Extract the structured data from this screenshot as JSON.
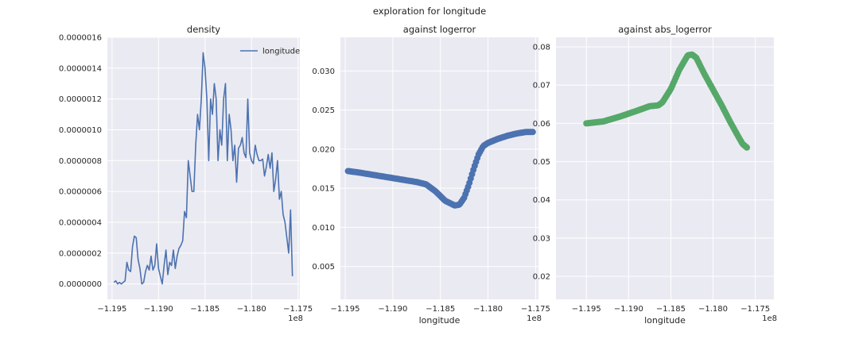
{
  "figure": {
    "suptitle": "exploration for longitude",
    "background": "#ffffff",
    "axes_bg": "#eaeaf2",
    "grid_color": "#ffffff"
  },
  "chart_data": [
    {
      "type": "line",
      "title": "density",
      "xlabel": "",
      "ylabel": "",
      "x_offset_label": "1e8",
      "xlim": [
        -1.1955,
        -1.1748
      ],
      "ylim": [
        -1e-07,
        1.6e-06
      ],
      "xticks": [
        -1.195,
        -1.19,
        -1.185,
        -1.18,
        -1.175
      ],
      "xtick_labels": [
        "−1.195",
        "−1.190",
        "−1.185",
        "−1.180",
        "−1.175"
      ],
      "yticks": [
        0,
        2e-07,
        4e-07,
        6e-07,
        8e-07,
        1e-06,
        1.2e-06,
        1.4e-06,
        1.6e-06
      ],
      "ytick_labels": [
        "0.0000000",
        "0.0000002",
        "0.0000004",
        "0.0000006",
        "0.0000008",
        "0.0000010",
        "0.0000012",
        "0.0000014",
        "0.0000016"
      ],
      "legend": {
        "position": "top-right",
        "entries": [
          "longitude"
        ]
      },
      "color": "#4c72b0",
      "series": [
        {
          "name": "longitude",
          "x": [
            -1.1948,
            -1.1946,
            -1.1944,
            -1.1942,
            -1.194,
            -1.1938,
            -1.1936,
            -1.1934,
            -1.1932,
            -1.193,
            -1.1928,
            -1.1926,
            -1.1924,
            -1.1922,
            -1.192,
            -1.1918,
            -1.1916,
            -1.1914,
            -1.1912,
            -1.191,
            -1.1908,
            -1.1906,
            -1.1904,
            -1.1902,
            -1.19,
            -1.1898,
            -1.1896,
            -1.1894,
            -1.1892,
            -1.189,
            -1.1888,
            -1.1886,
            -1.1884,
            -1.1882,
            -1.188,
            -1.1878,
            -1.1876,
            -1.1874,
            -1.1872,
            -1.187,
            -1.1868,
            -1.1866,
            -1.1864,
            -1.1862,
            -1.186,
            -1.1858,
            -1.1856,
            -1.1854,
            -1.1852,
            -1.185,
            -1.1848,
            -1.1846,
            -1.1844,
            -1.1842,
            -1.184,
            -1.1838,
            -1.1836,
            -1.1834,
            -1.1832,
            -1.183,
            -1.1828,
            -1.1826,
            -1.1824,
            -1.1822,
            -1.182,
            -1.1818,
            -1.1816,
            -1.1814,
            -1.1812,
            -1.181,
            -1.1808,
            -1.1806,
            -1.1804,
            -1.1802,
            -1.18,
            -1.1798,
            -1.1796,
            -1.1794,
            -1.1792,
            -1.179,
            -1.1788,
            -1.1786,
            -1.1784,
            -1.1782,
            -1.178,
            -1.1778,
            -1.1776,
            -1.1774,
            -1.1772,
            -1.177,
            -1.1768,
            -1.1766,
            -1.1764,
            -1.1762,
            -1.176,
            -1.1758,
            -1.1756
          ],
          "y": [
            1e-08,
            2e-08,
            0.0,
            1e-08,
            0.0,
            1e-08,
            2e-08,
            1.4e-07,
            9e-08,
            8e-08,
            2.4e-07,
            3.1e-07,
            3e-07,
            1.6e-07,
            1e-07,
            0.0,
            1e-08,
            8e-08,
            1.2e-07,
            9e-08,
            1.8e-07,
            9e-08,
            1.2e-07,
            2.6e-07,
            1e-07,
            5e-08,
            0.0,
            1.2e-07,
            2.2e-07,
            6e-08,
            1.4e-07,
            1.2e-07,
            2.2e-07,
            1e-07,
            1.8e-07,
            2.3e-07,
            2.5e-07,
            2.8e-07,
            4.7e-07,
            4.3e-07,
            8e-07,
            7e-07,
            6e-07,
            6e-07,
            9e-07,
            1.1e-06,
            1e-06,
            1.2e-06,
            1.5e-06,
            1.4e-06,
            1.2e-06,
            8e-07,
            1.2e-06,
            1.1e-06,
            1.3e-06,
            1.2e-06,
            8e-07,
            1e-06,
            9e-07,
            1.2e-06,
            1.3e-06,
            8e-07,
            1.1e-06,
            1e-06,
            8e-07,
            9e-07,
            6.6e-07,
            8.8e-07,
            9e-07,
            9.5e-07,
            8.5e-07,
            8.2e-07,
            1.2e-06,
            8.5e-07,
            8e-07,
            7.8e-07,
            9e-07,
            8.4e-07,
            8e-07,
            8e-07,
            8.1e-07,
            7e-07,
            7.6e-07,
            8.4e-07,
            7.5e-07,
            8.5e-07,
            6e-07,
            6.8e-07,
            8e-07,
            5.5e-07,
            6e-07,
            4.5e-07,
            4e-07,
            3e-07,
            2e-07,
            4.8e-07,
            5e-08
          ]
        }
      ]
    },
    {
      "type": "scatter",
      "title": "against logerror",
      "xlabel": "longitude",
      "ylabel": "",
      "x_offset_label": "1e8",
      "xlim": [
        -1.1955,
        -1.1747
      ],
      "ylim": [
        0.0008,
        0.0343
      ],
      "xticks": [
        -1.195,
        -1.19,
        -1.185,
        -1.18,
        -1.175
      ],
      "xtick_labels": [
        "−1.195",
        "−1.190",
        "−1.185",
        "−1.180",
        "−1.175"
      ],
      "yticks": [
        0.005,
        0.01,
        0.015,
        0.02,
        0.025,
        0.03
      ],
      "ytick_labels": [
        "0.005",
        "0.010",
        "0.015",
        "0.020",
        "0.025",
        "0.030"
      ],
      "color": "#4c72b0",
      "anchors": {
        "x": [
          -1.1947,
          -1.1935,
          -1.192,
          -1.1905,
          -1.189,
          -1.1875,
          -1.1865,
          -1.1855,
          -1.1845,
          -1.1835,
          -1.183,
          -1.1825,
          -1.182,
          -1.1815,
          -1.181,
          -1.1805,
          -1.18,
          -1.179,
          -1.178,
          -1.177,
          -1.176,
          -1.1753
        ],
        "y": [
          0.0172,
          0.017,
          0.0167,
          0.0164,
          0.0161,
          0.0158,
          0.0155,
          0.0146,
          0.0134,
          0.0128,
          0.0129,
          0.0138,
          0.0155,
          0.0175,
          0.0193,
          0.0204,
          0.0208,
          0.0213,
          0.0217,
          0.022,
          0.0222,
          0.0222
        ]
      }
    },
    {
      "type": "scatter",
      "title": "against abs_logerror",
      "xlabel": "longitude",
      "ylabel": "",
      "x_offset_label": "1e8",
      "xlim": [
        -1.1986,
        -1.1728
      ],
      "ylim": [
        0.014,
        0.0825
      ],
      "xticks": [
        -1.195,
        -1.19,
        -1.185,
        -1.18,
        -1.175
      ],
      "xtick_labels": [
        "−1.195",
        "−1.190",
        "−1.185",
        "−1.180",
        "−1.175"
      ],
      "yticks": [
        0.02,
        0.03,
        0.04,
        0.05,
        0.06,
        0.07,
        0.08
      ],
      "ytick_labels": [
        "0.02",
        "0.03",
        "0.04",
        "0.05",
        "0.06",
        "0.07",
        "0.08"
      ],
      "color": "#55a868",
      "anchors": {
        "x": [
          -1.195,
          -1.193,
          -1.191,
          -1.189,
          -1.1875,
          -1.1865,
          -1.186,
          -1.185,
          -1.184,
          -1.183,
          -1.1825,
          -1.182,
          -1.1815,
          -1.181,
          -1.18,
          -1.179,
          -1.178,
          -1.177,
          -1.1765,
          -1.176
        ],
        "y": [
          0.06,
          0.0605,
          0.0618,
          0.0633,
          0.0645,
          0.0647,
          0.0655,
          0.069,
          0.074,
          0.0778,
          0.078,
          0.0772,
          0.075,
          0.0728,
          0.0688,
          0.0648,
          0.0605,
          0.0565,
          0.0546,
          0.0537
        ]
      }
    }
  ]
}
